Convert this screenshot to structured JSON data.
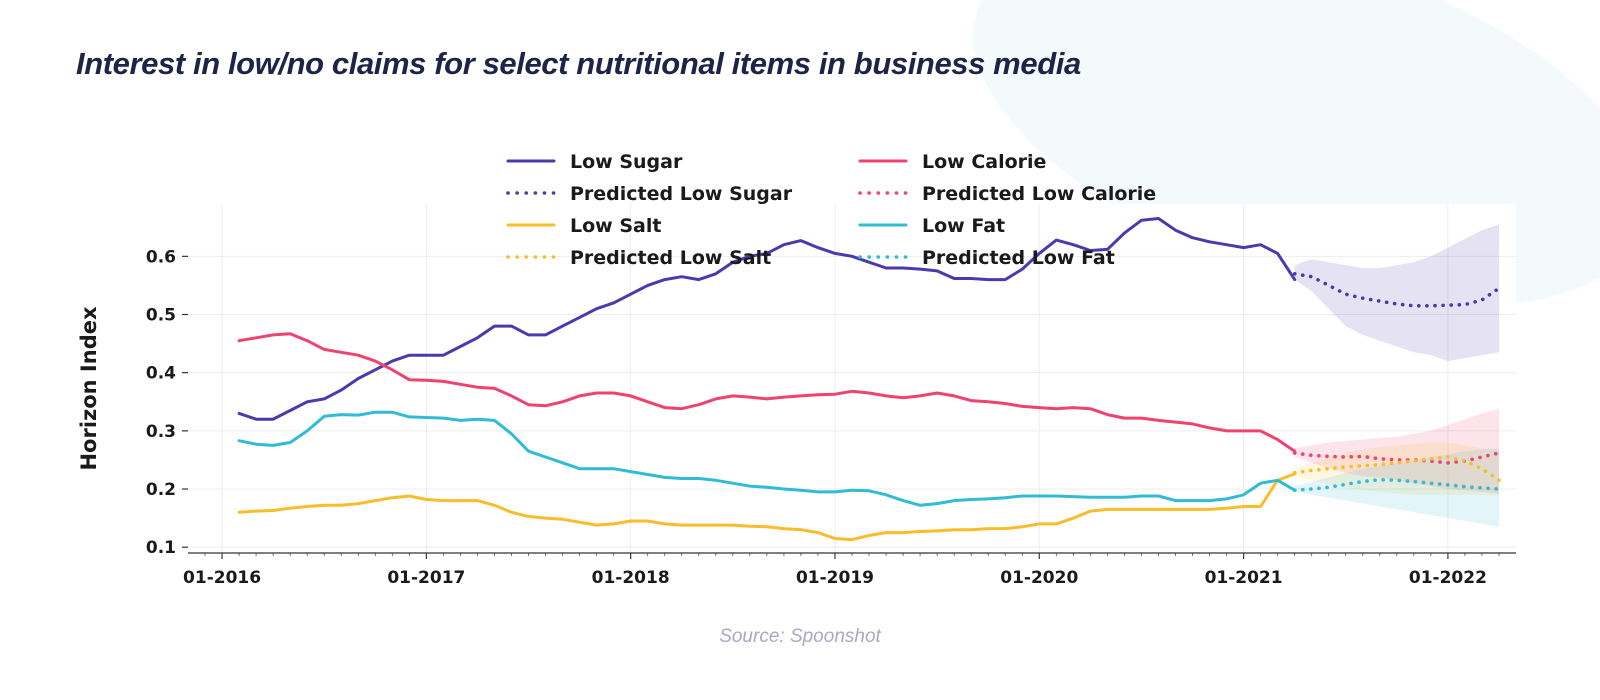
{
  "title": "Interest in low/no claims for select nutritional items in business media",
  "source": "Source: Spoonshot",
  "colors": {
    "low_sugar": "#4a3aad",
    "low_calorie": "#f0426e",
    "low_salt": "#f8bd2a",
    "low_fat": "#2fbcd4"
  },
  "chart_data": {
    "type": "line",
    "ylabel": "Horizon Index",
    "xlabel": "",
    "ylim": [
      0.09,
      0.69
    ],
    "x_range": [
      "2015-11",
      "2022-05"
    ],
    "x_ticks": [
      "01-2016",
      "01-2017",
      "01-2018",
      "01-2019",
      "01-2020",
      "01-2021",
      "01-2022"
    ],
    "y_ticks": [
      "0.1",
      "0.2",
      "0.3",
      "0.4",
      "0.5",
      "0.6"
    ],
    "grid": true,
    "legend_position": "top-center",
    "observed_dates": [
      "2016-02",
      "2016-03",
      "2016-04",
      "2016-05",
      "2016-06",
      "2016-07",
      "2016-08",
      "2016-09",
      "2016-10",
      "2016-11",
      "2016-12",
      "2017-01",
      "2017-02",
      "2017-03",
      "2017-04",
      "2017-05",
      "2017-06",
      "2017-07",
      "2017-08",
      "2017-09",
      "2017-10",
      "2017-11",
      "2017-12",
      "2018-01",
      "2018-02",
      "2018-03",
      "2018-04",
      "2018-05",
      "2018-06",
      "2018-07",
      "2018-08",
      "2018-09",
      "2018-10",
      "2018-11",
      "2018-12",
      "2019-01",
      "2019-02",
      "2019-03",
      "2019-04",
      "2019-05",
      "2019-06",
      "2019-07",
      "2019-08",
      "2019-09",
      "2019-10",
      "2019-11",
      "2019-12",
      "2020-01",
      "2020-02",
      "2020-03",
      "2020-04",
      "2020-05",
      "2020-06",
      "2020-07",
      "2020-08",
      "2020-09",
      "2020-10",
      "2020-11",
      "2020-12",
      "2021-01",
      "2021-02",
      "2021-03",
      "2021-04"
    ],
    "predicted_dates": [
      "2021-04",
      "2021-05",
      "2021-06",
      "2021-07",
      "2021-08",
      "2021-09",
      "2021-10",
      "2021-11",
      "2021-12",
      "2022-01",
      "2022-02",
      "2022-03",
      "2022-04"
    ],
    "series": [
      {
        "name": "Low Sugar",
        "key": "low_sugar",
        "style": "solid",
        "values": [
          0.33,
          0.32,
          0.32,
          0.335,
          0.35,
          0.355,
          0.37,
          0.39,
          0.405,
          0.42,
          0.43,
          0.43,
          0.43,
          0.445,
          0.46,
          0.48,
          0.48,
          0.465,
          0.465,
          0.48,
          0.495,
          0.51,
          0.52,
          0.535,
          0.55,
          0.56,
          0.565,
          0.56,
          0.57,
          0.59,
          0.6,
          0.605,
          0.62,
          0.627,
          0.615,
          0.605,
          0.6,
          0.59,
          0.58,
          0.58,
          0.578,
          0.575,
          0.562,
          0.562,
          0.56,
          0.56,
          0.578,
          0.605,
          0.628,
          0.62,
          0.61,
          0.612,
          0.64,
          0.662,
          0.665,
          0.645,
          0.632,
          0.625,
          0.62,
          0.615,
          0.62,
          0.605,
          0.56
        ]
      },
      {
        "name": "Predicted Low Sugar",
        "key": "low_sugar",
        "style": "dotted",
        "values": [
          0.57,
          0.565,
          0.55,
          0.535,
          0.528,
          0.523,
          0.518,
          0.515,
          0.515,
          0.516,
          0.517,
          0.525,
          0.545
        ],
        "band_lower": [
          0.56,
          0.54,
          0.51,
          0.48,
          0.465,
          0.455,
          0.445,
          0.435,
          0.43,
          0.42,
          0.425,
          0.43,
          0.435
        ],
        "band_upper": [
          0.585,
          0.595,
          0.59,
          0.585,
          0.58,
          0.58,
          0.585,
          0.59,
          0.6,
          0.615,
          0.63,
          0.645,
          0.655
        ]
      },
      {
        "name": "Low Calorie",
        "key": "low_calorie",
        "style": "solid",
        "values": [
          0.455,
          0.46,
          0.465,
          0.467,
          0.455,
          0.44,
          0.435,
          0.43,
          0.42,
          0.405,
          0.388,
          0.387,
          0.385,
          0.38,
          0.375,
          0.373,
          0.36,
          0.345,
          0.343,
          0.35,
          0.36,
          0.365,
          0.365,
          0.36,
          0.35,
          0.34,
          0.338,
          0.345,
          0.355,
          0.36,
          0.358,
          0.355,
          0.358,
          0.36,
          0.362,
          0.363,
          0.368,
          0.365,
          0.36,
          0.357,
          0.36,
          0.365,
          0.36,
          0.352,
          0.35,
          0.347,
          0.342,
          0.34,
          0.338,
          0.34,
          0.338,
          0.328,
          0.322,
          0.322,
          0.318,
          0.315,
          0.312,
          0.305,
          0.3,
          0.3,
          0.3,
          0.285,
          0.265
        ]
      },
      {
        "name": "Predicted Low Calorie",
        "key": "low_calorie",
        "style": "dotted",
        "values": [
          0.262,
          0.258,
          0.256,
          0.255,
          0.256,
          0.252,
          0.25,
          0.25,
          0.248,
          0.245,
          0.248,
          0.255,
          0.262
        ],
        "band_lower": [
          0.255,
          0.245,
          0.235,
          0.228,
          0.222,
          0.22,
          0.215,
          0.21,
          0.205,
          0.2,
          0.198,
          0.195,
          0.192
        ],
        "band_upper": [
          0.27,
          0.275,
          0.28,
          0.283,
          0.285,
          0.288,
          0.29,
          0.295,
          0.3,
          0.31,
          0.32,
          0.33,
          0.338
        ]
      },
      {
        "name": "Low Salt",
        "key": "low_salt",
        "style": "solid",
        "values": [
          0.16,
          0.162,
          0.163,
          0.167,
          0.17,
          0.172,
          0.172,
          0.175,
          0.18,
          0.185,
          0.188,
          0.182,
          0.18,
          0.18,
          0.18,
          0.172,
          0.16,
          0.153,
          0.15,
          0.148,
          0.143,
          0.138,
          0.14,
          0.145,
          0.145,
          0.14,
          0.138,
          0.138,
          0.138,
          0.138,
          0.136,
          0.135,
          0.132,
          0.13,
          0.125,
          0.115,
          0.113,
          0.12,
          0.125,
          0.125,
          0.127,
          0.128,
          0.13,
          0.13,
          0.132,
          0.132,
          0.135,
          0.14,
          0.14,
          0.15,
          0.162,
          0.165,
          0.165,
          0.165,
          0.165,
          0.165,
          0.165,
          0.165,
          0.167,
          0.17,
          0.17,
          0.215,
          0.226
        ]
      },
      {
        "name": "Predicted Low Salt",
        "key": "low_salt",
        "style": "dotted",
        "values": [
          0.228,
          0.232,
          0.235,
          0.238,
          0.24,
          0.242,
          0.245,
          0.248,
          0.252,
          0.255,
          0.248,
          0.235,
          0.215
        ],
        "band_lower": [
          0.222,
          0.215,
          0.208,
          0.202,
          0.198,
          0.195,
          0.193,
          0.19,
          0.19,
          0.19,
          0.19,
          0.19,
          0.19
        ],
        "band_upper": [
          0.235,
          0.245,
          0.255,
          0.262,
          0.268,
          0.272,
          0.275,
          0.278,
          0.28,
          0.28,
          0.275,
          0.27,
          0.265
        ]
      },
      {
        "name": "Low Fat",
        "key": "low_fat",
        "style": "solid",
        "values": [
          0.283,
          0.277,
          0.275,
          0.28,
          0.3,
          0.325,
          0.328,
          0.327,
          0.332,
          0.332,
          0.324,
          0.323,
          0.322,
          0.318,
          0.32,
          0.318,
          0.295,
          0.265,
          0.255,
          0.245,
          0.235,
          0.235,
          0.235,
          0.23,
          0.225,
          0.22,
          0.218,
          0.218,
          0.215,
          0.21,
          0.205,
          0.203,
          0.2,
          0.198,
          0.195,
          0.195,
          0.198,
          0.197,
          0.19,
          0.18,
          0.172,
          0.175,
          0.18,
          0.182,
          0.183,
          0.185,
          0.188,
          0.188,
          0.188,
          0.187,
          0.186,
          0.186,
          0.186,
          0.188,
          0.188,
          0.18,
          0.18,
          0.18,
          0.183,
          0.19,
          0.21,
          0.215,
          0.198
        ]
      },
      {
        "name": "Predicted Low Fat",
        "key": "low_fat",
        "style": "dotted",
        "values": [
          0.198,
          0.2,
          0.203,
          0.208,
          0.213,
          0.216,
          0.215,
          0.213,
          0.21,
          0.207,
          0.204,
          0.202,
          0.2
        ],
        "band_lower": [
          0.195,
          0.19,
          0.185,
          0.18,
          0.175,
          0.17,
          0.165,
          0.16,
          0.155,
          0.15,
          0.145,
          0.14,
          0.135
        ],
        "band_upper": [
          0.205,
          0.212,
          0.22,
          0.228,
          0.235,
          0.24,
          0.245,
          0.25,
          0.255,
          0.26,
          0.265,
          0.268,
          0.27
        ]
      }
    ]
  }
}
